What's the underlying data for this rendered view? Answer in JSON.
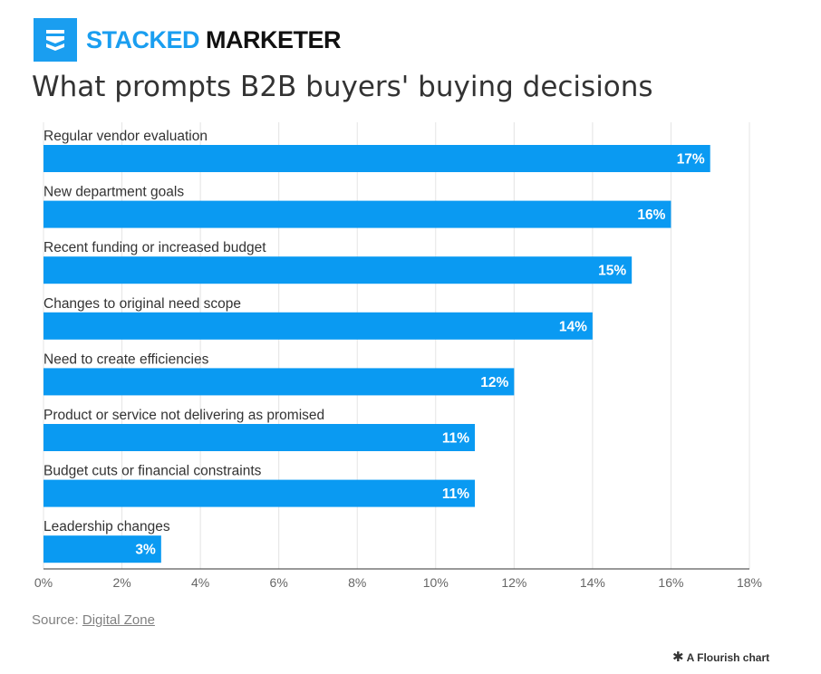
{
  "brand": {
    "name_part1": "STACKED",
    "name_part2": "MARKETER",
    "logo_color": "#1a9ef0"
  },
  "chart_data": {
    "type": "bar",
    "orientation": "horizontal",
    "title": "What prompts B2B buyers' buying decisions",
    "categories": [
      "Regular vendor evaluation",
      "New department goals",
      "Recent funding or increased budget",
      "Changes to original need scope",
      "Need to create efficiencies",
      "Product or service not delivering as promised",
      "Budget cuts or financial constraints",
      "Leadership changes"
    ],
    "values": [
      17,
      16,
      15,
      14,
      12,
      11,
      11,
      3
    ],
    "data_labels": [
      "17%",
      "16%",
      "15%",
      "14%",
      "12%",
      "11%",
      "11%",
      "3%"
    ],
    "xlim": [
      0,
      18
    ],
    "x_ticks": [
      0,
      2,
      4,
      6,
      8,
      10,
      12,
      14,
      16,
      18
    ],
    "x_tick_labels": [
      "0%",
      "2%",
      "4%",
      "6%",
      "8%",
      "10%",
      "12%",
      "14%",
      "16%",
      "18%"
    ],
    "grid": true,
    "bar_color": "#0a9af2"
  },
  "source": {
    "prefix": "Source: ",
    "link_text": "Digital Zone"
  },
  "footer": {
    "credit": "A Flourish chart",
    "icon": "flourish-asterisk-icon"
  }
}
